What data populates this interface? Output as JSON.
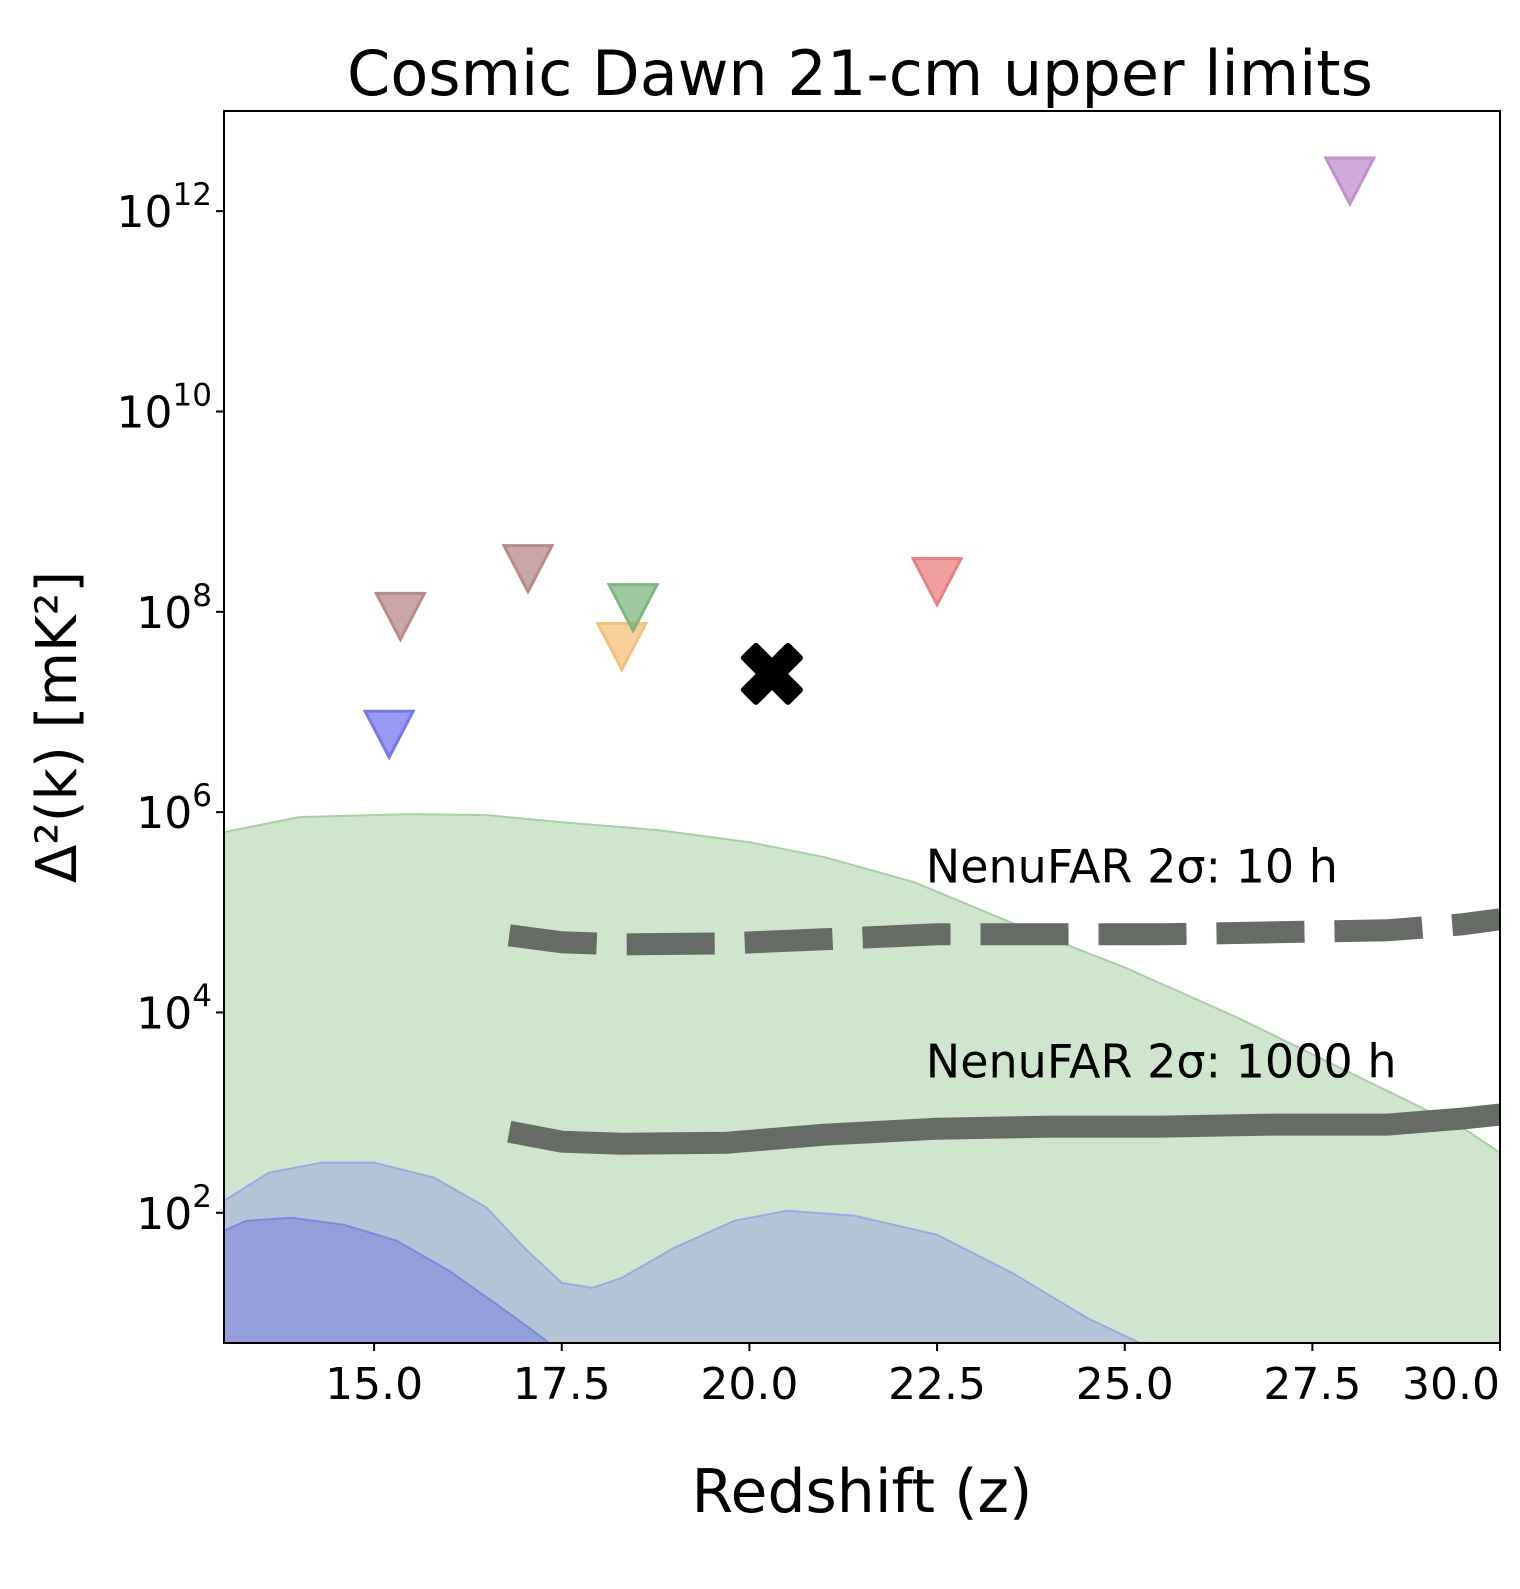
{
  "chart_data": {
    "type": "scatter",
    "title": "Cosmic Dawn 21-cm upper limits",
    "xlabel": "Redshift (z)",
    "ylabel": "Δ²(k) [mK²]",
    "xlim": [
      13.0,
      30.0
    ],
    "ylim_log10": [
      0.7,
      13.0
    ],
    "yscale": "log",
    "grid": false,
    "x_ticks": [
      {
        "value": 15.0,
        "label": "15.0"
      },
      {
        "value": 17.5,
        "label": "17.5"
      },
      {
        "value": 20.0,
        "label": "20.0"
      },
      {
        "value": 22.5,
        "label": "22.5"
      },
      {
        "value": 25.0,
        "label": "25.0"
      },
      {
        "value": 27.5,
        "label": "27.5"
      },
      {
        "value": 30.0,
        "label": "30.0"
      }
    ],
    "y_ticks": [
      {
        "log10": 2,
        "base": "10",
        "exp": "2"
      },
      {
        "log10": 4,
        "base": "10",
        "exp": "4"
      },
      {
        "log10": 6,
        "base": "10",
        "exp": "6"
      },
      {
        "log10": 8,
        "base": "10",
        "exp": "8"
      },
      {
        "log10": 10,
        "base": "10",
        "exp": "10"
      },
      {
        "log10": 12,
        "base": "10",
        "exp": "12"
      }
    ],
    "upper_limits": [
      {
        "x": 15.2,
        "y": 6000000.0,
        "color": "#7777ee"
      },
      {
        "x": 15.35,
        "y": 90000000.0,
        "color": "#b88a8a"
      },
      {
        "x": 17.05,
        "y": 270000000.0,
        "color": "#b88a8a"
      },
      {
        "x": 18.3,
        "y": 45000000.0,
        "color": "#f5c07a"
      },
      {
        "x": 18.45,
        "y": 110000000.0,
        "color": "#7fb87f"
      },
      {
        "x": 22.5,
        "y": 200000000.0,
        "color": "#ec8080"
      },
      {
        "x": 28.0,
        "y": 2000000000000.0,
        "color": "#c28fcf"
      }
    ],
    "cross_marker": {
      "x": 20.3,
      "y": 24000000.0,
      "color": "#000000"
    },
    "bands": [
      {
        "color": "#c8e0c4",
        "edge": "#a9cfa4",
        "upper": [
          [
            13.0,
            5.8
          ],
          [
            14.0,
            5.95
          ],
          [
            15.5,
            5.98
          ],
          [
            16.5,
            5.97
          ],
          [
            17.5,
            5.9
          ],
          [
            18.8,
            5.82
          ],
          [
            20.0,
            5.7
          ],
          [
            21.0,
            5.55
          ],
          [
            22.2,
            5.3
          ],
          [
            23.8,
            4.8
          ],
          [
            25.0,
            4.45
          ],
          [
            26.5,
            3.95
          ],
          [
            28.0,
            3.4
          ],
          [
            29.5,
            2.85
          ],
          [
            30.0,
            2.6
          ]
        ]
      },
      {
        "color": "#b0bfd9",
        "edge": "#9aa8e3",
        "upper": [
          [
            13.0,
            2.12
          ],
          [
            13.6,
            2.4
          ],
          [
            14.3,
            2.5
          ],
          [
            15.0,
            2.5
          ],
          [
            15.8,
            2.35
          ],
          [
            16.5,
            2.05
          ],
          [
            17.0,
            1.65
          ],
          [
            17.5,
            1.3
          ],
          [
            17.9,
            1.25
          ],
          [
            18.3,
            1.35
          ],
          [
            19.0,
            1.65
          ],
          [
            19.8,
            1.92
          ],
          [
            20.5,
            2.02
          ],
          [
            21.4,
            1.97
          ],
          [
            22.5,
            1.78
          ],
          [
            23.5,
            1.4
          ],
          [
            24.5,
            0.95
          ],
          [
            25.2,
            0.7
          ]
        ]
      },
      {
        "color": "#8d98dc",
        "edge": "#7f86dd",
        "upper": [
          [
            13.0,
            1.82
          ],
          [
            13.3,
            1.92
          ],
          [
            13.9,
            1.95
          ],
          [
            14.6,
            1.88
          ],
          [
            15.3,
            1.72
          ],
          [
            16.0,
            1.42
          ],
          [
            16.7,
            1.05
          ],
          [
            17.3,
            0.72
          ]
        ]
      }
    ],
    "series": [
      {
        "name": "NenuFAR 2σ: 10 h",
        "style": "dashed",
        "color": "#666b66",
        "points": [
          [
            16.8,
            4.77
          ],
          [
            17.5,
            4.7
          ],
          [
            18.3,
            4.68
          ],
          [
            19.7,
            4.69
          ],
          [
            21.0,
            4.73
          ],
          [
            22.5,
            4.78
          ],
          [
            24.0,
            4.78
          ],
          [
            25.5,
            4.78
          ],
          [
            27.0,
            4.8
          ],
          [
            28.5,
            4.82
          ],
          [
            29.5,
            4.88
          ],
          [
            30.0,
            4.93
          ]
        ]
      },
      {
        "name": "NenuFAR 2σ: 1000 h",
        "style": "solid",
        "color": "#666b66",
        "points": [
          [
            16.8,
            2.81
          ],
          [
            17.5,
            2.71
          ],
          [
            18.3,
            2.69
          ],
          [
            19.7,
            2.7
          ],
          [
            21.0,
            2.78
          ],
          [
            22.5,
            2.84
          ],
          [
            24.0,
            2.86
          ],
          [
            25.5,
            2.86
          ],
          [
            27.0,
            2.88
          ],
          [
            28.5,
            2.88
          ],
          [
            29.5,
            2.94
          ],
          [
            30.0,
            2.98
          ]
        ]
      }
    ],
    "annotations": [
      {
        "text": "NenuFAR 2σ: 10 h",
        "x": 22.35,
        "y_log10": 5.3
      },
      {
        "text": "NenuFAR 2σ: 1000 h",
        "x": 22.35,
        "y_log10": 3.35
      }
    ]
  }
}
